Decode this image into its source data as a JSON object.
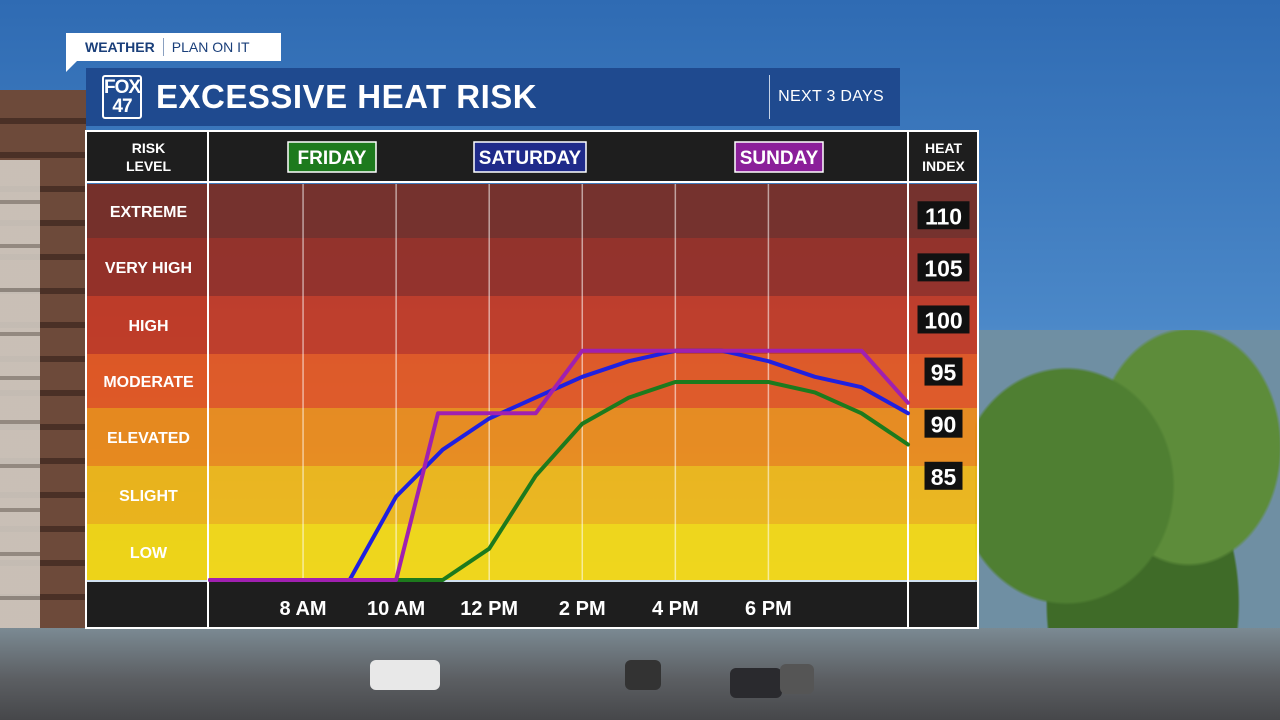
{
  "header": {
    "tag_primary": "WEATHER",
    "tag_secondary": "PLAN ON IT",
    "logo_line1": "FOX",
    "logo_line2": "47",
    "title": "EXCESSIVE HEAT RISK",
    "period": "NEXT 3 DAYS"
  },
  "chart_data": {
    "type": "line",
    "left_axis_title": [
      "RISK",
      "LEVEL"
    ],
    "right_axis_title": [
      "HEAT",
      "INDEX"
    ],
    "risk_levels": [
      "EXTREME",
      "VERY HIGH",
      "HIGH",
      "MODERATE",
      "ELEVATED",
      "SLIGHT",
      "LOW"
    ],
    "band_colors": [
      "#7a2b22",
      "#9a2c1f",
      "#c8381f",
      "#e8561c",
      "#f08a14",
      "#f2b611",
      "#f5d80c"
    ],
    "heat_index_ticks": [
      110,
      105,
      100,
      95,
      90,
      85
    ],
    "x_tick_labels": [
      "8 AM",
      "10 AM",
      "12 PM",
      "2 PM",
      "4 PM",
      "6 PM"
    ],
    "x_range_hours": [
      6,
      21
    ],
    "y_range_heat_index": [
      75,
      113
    ],
    "series": [
      {
        "name": "FRIDAY",
        "color": "#1d7a1d",
        "points": [
          [
            6,
            75
          ],
          [
            11,
            75
          ],
          [
            12,
            78
          ],
          [
            13,
            85
          ],
          [
            14,
            90
          ],
          [
            15,
            92.5
          ],
          [
            16,
            94
          ],
          [
            17,
            94
          ],
          [
            18,
            94
          ],
          [
            19,
            93
          ],
          [
            20,
            91
          ],
          [
            21,
            88
          ]
        ]
      },
      {
        "name": "SATURDAY",
        "color": "#2020e0",
        "points": [
          [
            6,
            75
          ],
          [
            9,
            75
          ],
          [
            10,
            83
          ],
          [
            11,
            87.5
          ],
          [
            12,
            90.5
          ],
          [
            13,
            92.5
          ],
          [
            14,
            94.5
          ],
          [
            15,
            96
          ],
          [
            16,
            97
          ],
          [
            17,
            97
          ],
          [
            18,
            96
          ],
          [
            19,
            94.5
          ],
          [
            20,
            93.5
          ],
          [
            21,
            91
          ]
        ]
      },
      {
        "name": "SUNDAY",
        "color": "#a020b0",
        "points": [
          [
            6,
            75
          ],
          [
            10,
            75
          ],
          [
            10.9,
            91
          ],
          [
            13,
            91
          ],
          [
            14,
            97
          ],
          [
            15,
            97
          ],
          [
            16,
            97
          ],
          [
            17,
            97
          ],
          [
            18,
            97
          ],
          [
            19,
            97
          ],
          [
            20,
            97
          ],
          [
            21,
            92
          ]
        ]
      }
    ],
    "day_label_styles": [
      {
        "bg": "#1d7a1d",
        "border": "#ffffff"
      },
      {
        "bg": "#1f2a8a",
        "border": "#ffffff"
      },
      {
        "bg": "#8b1f9a",
        "border": "#ffffff"
      }
    ],
    "grid": true
  }
}
